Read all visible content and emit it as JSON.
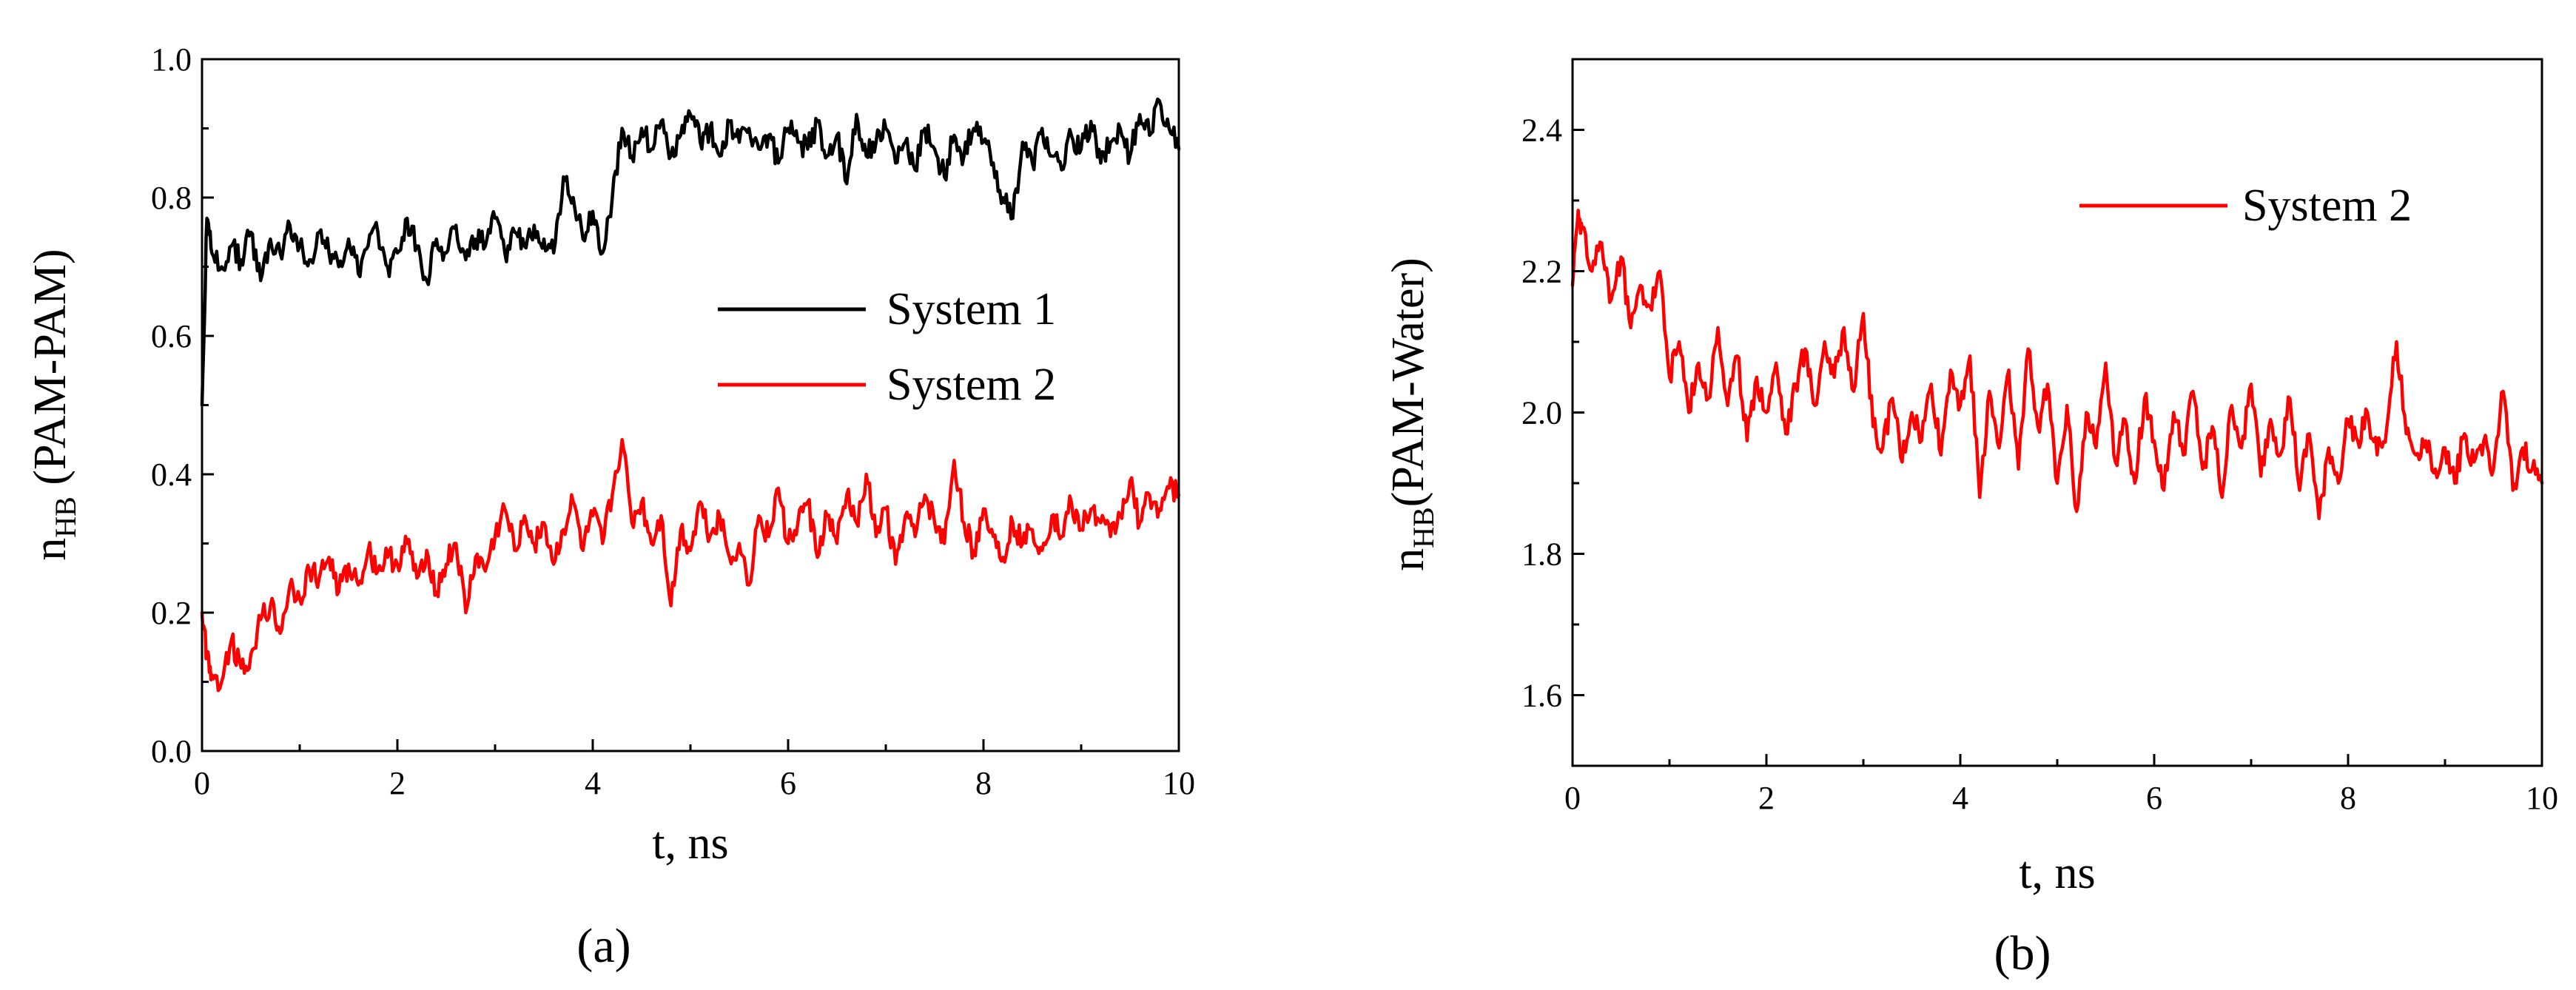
{
  "chart_data": [
    {
      "id": "a",
      "type": "line",
      "panel_label": "(a)",
      "xlabel": "t, ns",
      "ylabel": {
        "main": "n",
        "sub": "HB",
        "rest": " (PAM-PAM)"
      },
      "xlim": [
        0,
        10
      ],
      "ylim": [
        0.0,
        1.0
      ],
      "xticks": [
        "0",
        "2",
        "4",
        "6",
        "8",
        "10"
      ],
      "yticks": [
        "0.0",
        "0.2",
        "0.4",
        "0.6",
        "0.8",
        "1.0"
      ],
      "grid": false,
      "legend_position": "center-right",
      "series": [
        {
          "name": "System 1",
          "color": "#000000",
          "x": [
            0,
            0.05,
            0.1,
            0.2,
            0.3,
            0.4,
            0.5,
            0.6,
            0.7,
            0.8,
            0.9,
            1.0,
            1.1,
            1.2,
            1.3,
            1.4,
            1.5,
            1.6,
            1.7,
            1.8,
            1.9,
            2.0,
            2.1,
            2.2,
            2.3,
            2.4,
            2.5,
            2.6,
            2.7,
            2.8,
            2.9,
            3.0,
            3.1,
            3.2,
            3.3,
            3.4,
            3.5,
            3.6,
            3.7,
            3.8,
            3.9,
            4.0,
            4.1,
            4.2,
            4.3,
            4.4,
            4.5,
            4.6,
            4.7,
            4.8,
            4.9,
            5.0,
            5.1,
            5.2,
            5.3,
            5.4,
            5.5,
            5.6,
            5.7,
            5.8,
            5.9,
            6.0,
            6.1,
            6.2,
            6.3,
            6.4,
            6.5,
            6.6,
            6.7,
            6.8,
            6.9,
            7.0,
            7.1,
            7.2,
            7.3,
            7.4,
            7.5,
            7.6,
            7.7,
            7.8,
            7.9,
            8.0,
            8.1,
            8.2,
            8.3,
            8.4,
            8.5,
            8.6,
            8.7,
            8.8,
            8.9,
            9.0,
            9.1,
            9.2,
            9.3,
            9.4,
            9.5,
            9.6,
            9.7,
            9.8,
            9.9,
            10.0
          ],
          "y": [
            0.5,
            0.77,
            0.72,
            0.7,
            0.73,
            0.71,
            0.75,
            0.68,
            0.74,
            0.72,
            0.76,
            0.73,
            0.71,
            0.75,
            0.72,
            0.7,
            0.74,
            0.69,
            0.73,
            0.75,
            0.7,
            0.72,
            0.77,
            0.73,
            0.68,
            0.74,
            0.72,
            0.76,
            0.71,
            0.74,
            0.73,
            0.77,
            0.72,
            0.75,
            0.73,
            0.76,
            0.74,
            0.72,
            0.83,
            0.8,
            0.74,
            0.78,
            0.72,
            0.8,
            0.9,
            0.86,
            0.9,
            0.87,
            0.91,
            0.86,
            0.89,
            0.92,
            0.88,
            0.9,
            0.86,
            0.91,
            0.88,
            0.9,
            0.87,
            0.89,
            0.85,
            0.9,
            0.88,
            0.87,
            0.91,
            0.86,
            0.89,
            0.82,
            0.92,
            0.86,
            0.88,
            0.9,
            0.85,
            0.88,
            0.84,
            0.9,
            0.87,
            0.83,
            0.89,
            0.86,
            0.9,
            0.88,
            0.85,
            0.8,
            0.77,
            0.88,
            0.85,
            0.9,
            0.86,
            0.84,
            0.89,
            0.87,
            0.91,
            0.85,
            0.88,
            0.9,
            0.86,
            0.92,
            0.89,
            0.94,
            0.9,
            0.87
          ]
        },
        {
          "name": "System 2",
          "color": "#ff0000",
          "x": [
            0,
            0.05,
            0.1,
            0.2,
            0.3,
            0.4,
            0.5,
            0.6,
            0.7,
            0.8,
            0.9,
            1.0,
            1.1,
            1.2,
            1.3,
            1.4,
            1.5,
            1.6,
            1.7,
            1.8,
            1.9,
            2.0,
            2.1,
            2.2,
            2.3,
            2.4,
            2.5,
            2.6,
            2.7,
            2.8,
            2.9,
            3.0,
            3.1,
            3.2,
            3.3,
            3.4,
            3.5,
            3.6,
            3.7,
            3.8,
            3.9,
            4.0,
            4.1,
            4.2,
            4.3,
            4.4,
            4.5,
            4.6,
            4.7,
            4.8,
            4.9,
            5.0,
            5.1,
            5.2,
            5.3,
            5.4,
            5.5,
            5.6,
            5.7,
            5.8,
            5.9,
            6.0,
            6.1,
            6.2,
            6.3,
            6.4,
            6.5,
            6.6,
            6.7,
            6.8,
            6.9,
            7.0,
            7.1,
            7.2,
            7.3,
            7.4,
            7.5,
            7.6,
            7.7,
            7.8,
            7.9,
            8.0,
            8.1,
            8.2,
            8.3,
            8.4,
            8.5,
            8.6,
            8.7,
            8.8,
            8.9,
            9.0,
            9.1,
            9.2,
            9.3,
            9.4,
            9.5,
            9.6,
            9.7,
            9.8,
            9.9,
            10.0
          ],
          "y": [
            0.2,
            0.14,
            0.11,
            0.1,
            0.16,
            0.12,
            0.14,
            0.19,
            0.21,
            0.17,
            0.24,
            0.22,
            0.26,
            0.25,
            0.28,
            0.23,
            0.27,
            0.24,
            0.29,
            0.26,
            0.28,
            0.27,
            0.3,
            0.25,
            0.29,
            0.23,
            0.27,
            0.3,
            0.2,
            0.28,
            0.26,
            0.31,
            0.35,
            0.29,
            0.34,
            0.3,
            0.33,
            0.27,
            0.32,
            0.36,
            0.29,
            0.34,
            0.3,
            0.37,
            0.45,
            0.33,
            0.36,
            0.3,
            0.34,
            0.21,
            0.32,
            0.29,
            0.36,
            0.31,
            0.34,
            0.28,
            0.3,
            0.24,
            0.34,
            0.31,
            0.38,
            0.3,
            0.33,
            0.36,
            0.28,
            0.34,
            0.3,
            0.37,
            0.33,
            0.4,
            0.31,
            0.35,
            0.27,
            0.34,
            0.31,
            0.37,
            0.33,
            0.3,
            0.42,
            0.33,
            0.29,
            0.35,
            0.31,
            0.28,
            0.33,
            0.3,
            0.32,
            0.29,
            0.34,
            0.31,
            0.36,
            0.32,
            0.35,
            0.33,
            0.31,
            0.34,
            0.39,
            0.33,
            0.37,
            0.35,
            0.38,
            0.37
          ]
        }
      ]
    },
    {
      "id": "b",
      "type": "line",
      "panel_label": "(b)",
      "xlabel": "t, ns",
      "ylabel": {
        "main": "n",
        "sub": "HB",
        "rest": "(PAM-Water)"
      },
      "xlim": [
        0,
        10
      ],
      "ylim": [
        1.5,
        2.5
      ],
      "xticks": [
        "0",
        "2",
        "4",
        "6",
        "8",
        "10"
      ],
      "yticks": [
        "1.6",
        "1.8",
        "2.0",
        "2.2",
        "2.4"
      ],
      "grid": false,
      "legend_position": "top-right",
      "series": [
        {
          "name": "System 2",
          "color": "#ff0000",
          "x": [
            0,
            0.05,
            0.1,
            0.2,
            0.3,
            0.4,
            0.5,
            0.6,
            0.7,
            0.8,
            0.9,
            1.0,
            1.1,
            1.2,
            1.3,
            1.4,
            1.5,
            1.6,
            1.7,
            1.8,
            1.9,
            2.0,
            2.1,
            2.2,
            2.3,
            2.4,
            2.5,
            2.6,
            2.7,
            2.8,
            2.9,
            3.0,
            3.1,
            3.2,
            3.3,
            3.4,
            3.5,
            3.6,
            3.7,
            3.8,
            3.9,
            4.0,
            4.1,
            4.2,
            4.3,
            4.4,
            4.5,
            4.6,
            4.7,
            4.8,
            4.9,
            5.0,
            5.1,
            5.2,
            5.3,
            5.4,
            5.5,
            5.6,
            5.7,
            5.8,
            5.9,
            6.0,
            6.1,
            6.2,
            6.3,
            6.4,
            6.5,
            6.6,
            6.7,
            6.8,
            6.9,
            7.0,
            7.1,
            7.2,
            7.3,
            7.4,
            7.5,
            7.6,
            7.7,
            7.8,
            7.9,
            8.0,
            8.1,
            8.2,
            8.3,
            8.4,
            8.5,
            8.6,
            8.7,
            8.8,
            8.9,
            9.0,
            9.1,
            9.2,
            9.3,
            9.4,
            9.5,
            9.6,
            9.7,
            9.8,
            9.9,
            10.0
          ],
          "y": [
            2.18,
            2.27,
            2.26,
            2.2,
            2.24,
            2.16,
            2.22,
            2.12,
            2.18,
            2.15,
            2.2,
            2.05,
            2.1,
            2.0,
            2.07,
            2.02,
            2.12,
            2.01,
            2.08,
            1.96,
            2.05,
            2.0,
            2.07,
            1.97,
            2.04,
            2.09,
            2.01,
            2.1,
            2.05,
            2.12,
            2.03,
            2.14,
            1.98,
            1.95,
            2.02,
            1.93,
            2.0,
            1.96,
            2.04,
            1.94,
            2.06,
            2.01,
            2.08,
            1.88,
            2.03,
            1.95,
            2.06,
            1.92,
            2.09,
            1.98,
            2.04,
            1.9,
            2.01,
            1.86,
            2.0,
            1.95,
            2.07,
            1.93,
            1.99,
            1.9,
            2.02,
            1.96,
            1.89,
            2.0,
            1.94,
            2.03,
            1.92,
            1.98,
            1.88,
            2.01,
            1.95,
            2.04,
            1.91,
            1.99,
            1.94,
            2.02,
            1.89,
            1.97,
            1.85,
            1.95,
            1.9,
            1.99,
            1.96,
            2.0,
            1.94,
            1.98,
            2.1,
            1.97,
            1.94,
            1.96,
            1.92,
            1.95,
            1.9,
            1.97,
            1.93,
            1.96,
            1.92,
            2.03,
            1.89,
            1.95,
            1.92,
            1.9
          ]
        }
      ]
    }
  ]
}
